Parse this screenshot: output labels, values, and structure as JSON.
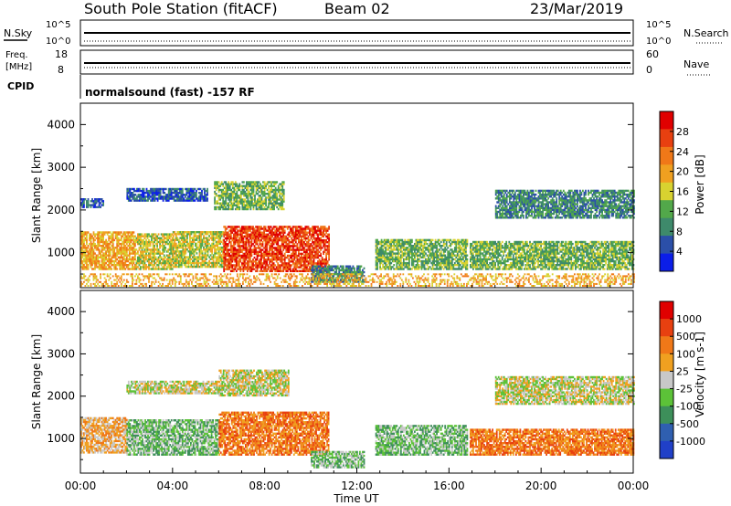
{
  "header": {
    "title": "South Pole Station (fitACF)",
    "beam": "Beam 02",
    "date": "23/Mar/2019"
  },
  "param_panels": {
    "nsky_label": "N.Sky",
    "nsearch_label": "N.Search",
    "nsky_ticks": [
      "10^5",
      "10^0"
    ],
    "nsearch_ticks": [
      "10^5",
      "10^0"
    ],
    "freq_label": [
      "Freq.",
      "[MHz]"
    ],
    "freq_ticks": [
      "18",
      "8"
    ],
    "nave_label": "Nave",
    "nave_ticks": [
      "60",
      "0"
    ],
    "cpid_label": "CPID",
    "cpid_text": "normalsound (fast) -157 RF"
  },
  "colors": {
    "power_scale": [
      "#0b1ee8",
      "#2b4fa8",
      "#3e8a6b",
      "#52a84a",
      "#d8d230",
      "#f0a020",
      "#f07818",
      "#e84010",
      "#e00000"
    ],
    "velocity_scale": [
      "#2040c8",
      "#2f5fb0",
      "#3d8f5a",
      "#5cc238",
      "#c8c8c8",
      "#f0a020",
      "#f07818",
      "#e84010",
      "#e00000"
    ]
  },
  "chart_data": [
    {
      "type": "heatmap",
      "parameter": "Power",
      "ylabel": "Slant Range [km]",
      "ylim": [
        180,
        4500
      ],
      "yticks": [
        1000,
        2000,
        3000,
        4000
      ],
      "xlim": [
        0,
        24
      ],
      "colorbar_label": "Power [dB]",
      "colorbar_ticks": [
        "28",
        "24",
        "20",
        "16",
        "12",
        "8",
        "4"
      ],
      "bands": [
        {
          "t0": 0.0,
          "t1": 2.4,
          "r0": 600,
          "r1": 1500,
          "level": 5
        },
        {
          "t0": 2.4,
          "t1": 4.0,
          "r0": 600,
          "r1": 1450,
          "level": 4
        },
        {
          "t0": 4.0,
          "t1": 6.2,
          "r0": 650,
          "r1": 1500,
          "level": 4
        },
        {
          "t0": 6.2,
          "t1": 10.8,
          "r0": 550,
          "r1": 1600,
          "level": 7
        },
        {
          "t0": 0.0,
          "t1": 1.0,
          "r0": 2050,
          "r1": 2250,
          "level": 1
        },
        {
          "t0": 2.0,
          "t1": 5.5,
          "r0": 2200,
          "r1": 2500,
          "level": 1
        },
        {
          "t0": 5.8,
          "t1": 8.8,
          "r0": 2000,
          "r1": 2650,
          "level": 3
        },
        {
          "t0": 10.0,
          "t1": 12.3,
          "r0": 300,
          "r1": 700,
          "level": 2
        },
        {
          "t0": 12.8,
          "t1": 16.8,
          "r0": 600,
          "r1": 1300,
          "level": 3
        },
        {
          "t0": 16.9,
          "t1": 24.0,
          "r0": 600,
          "r1": 1250,
          "level": 3
        },
        {
          "t0": 18.0,
          "t1": 24.0,
          "r0": 1800,
          "r1": 2450,
          "level": 2
        },
        {
          "t0": 0.0,
          "t1": 24.0,
          "r0": 200,
          "r1": 500,
          "level": 5
        }
      ]
    },
    {
      "type": "heatmap",
      "parameter": "Velocity",
      "ylabel": "Slant Range [km]",
      "ylim": [
        180,
        4500
      ],
      "yticks": [
        1000,
        2000,
        3000,
        4000
      ],
      "xlim": [
        0,
        24
      ],
      "xlabel": "Time UT",
      "xticks": [
        "00:00",
        "04:00",
        "08:00",
        "12:00",
        "16:00",
        "20:00",
        "00:00"
      ],
      "colorbar_label": "Velocity [m s-1]",
      "colorbar_ticks": [
        "1000",
        "500",
        "100",
        "25",
        "-25",
        "-100",
        "-500",
        "-1000"
      ],
      "bands": [
        {
          "t0": 0.0,
          "t1": 2.0,
          "r0": 650,
          "r1": 1500,
          "level": 5
        },
        {
          "t0": 2.0,
          "t1": 6.0,
          "r0": 600,
          "r1": 1450,
          "level": 3
        },
        {
          "t0": 6.0,
          "t1": 10.8,
          "r0": 600,
          "r1": 1600,
          "level": 6
        },
        {
          "t0": 2.0,
          "t1": 6.0,
          "r0": 2050,
          "r1": 2350,
          "level": 4
        },
        {
          "t0": 6.0,
          "t1": 9.0,
          "r0": 2000,
          "r1": 2600,
          "level": 4
        },
        {
          "t0": 12.8,
          "t1": 16.8,
          "r0": 600,
          "r1": 1300,
          "level": 3
        },
        {
          "t0": 16.9,
          "t1": 24.0,
          "r0": 600,
          "r1": 1200,
          "level": 6
        },
        {
          "t0": 18.0,
          "t1": 24.0,
          "r0": 1800,
          "r1": 2450,
          "level": 4
        },
        {
          "t0": 10.0,
          "t1": 12.3,
          "r0": 300,
          "r1": 700,
          "level": 3
        }
      ]
    }
  ]
}
